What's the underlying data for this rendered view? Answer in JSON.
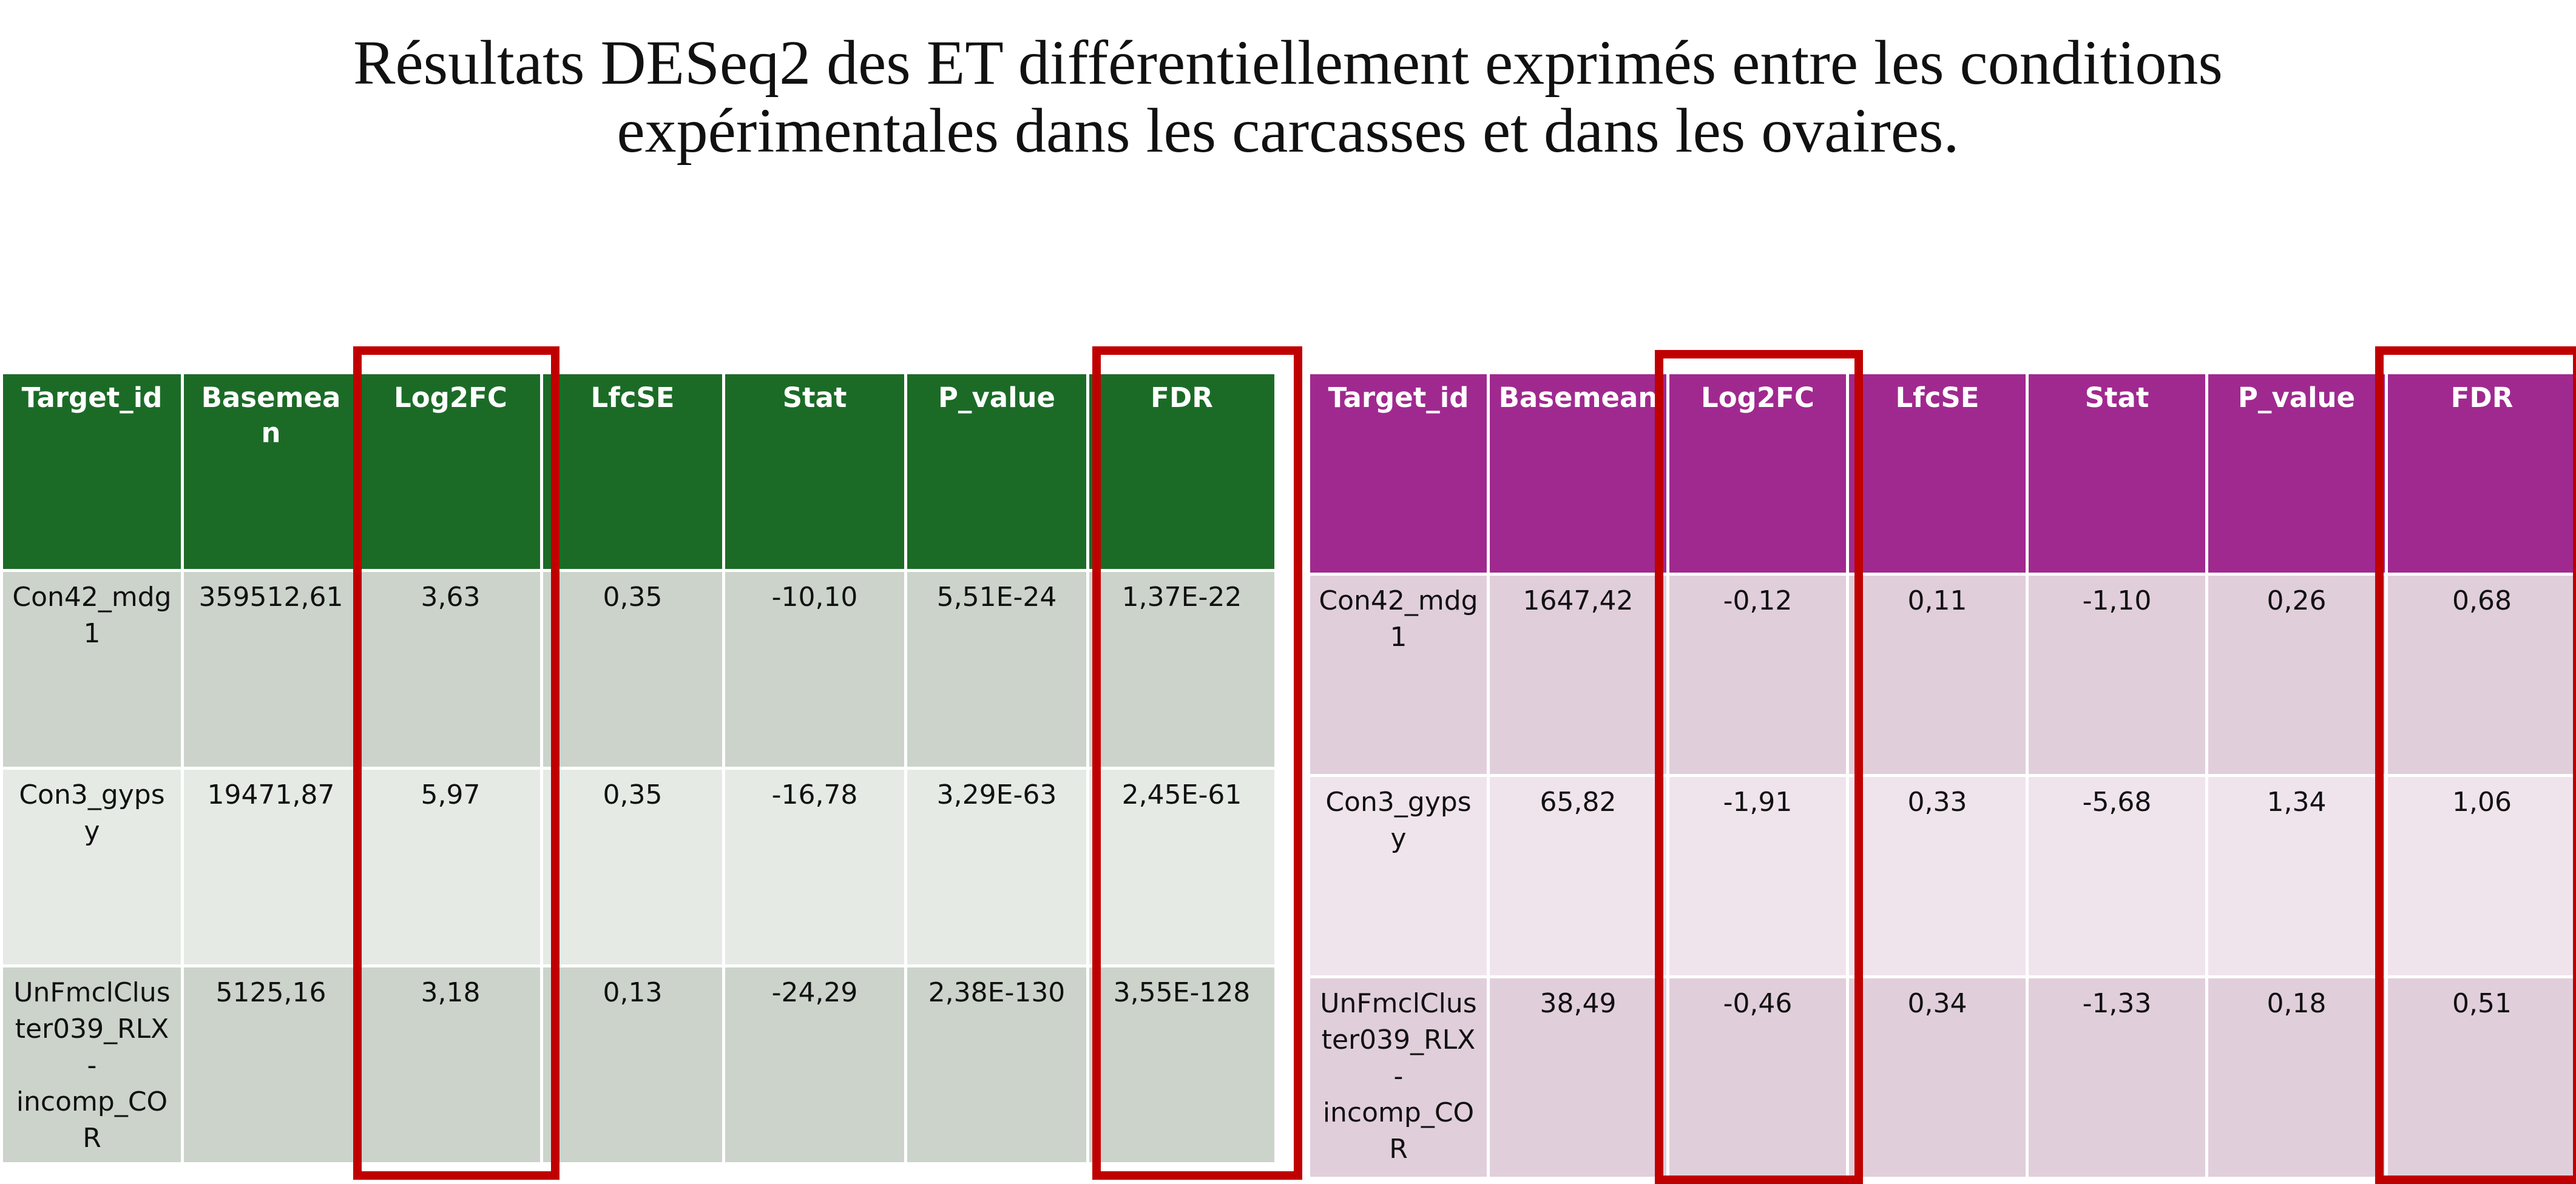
{
  "title": {
    "line1": "Résultats DESeq2 des ET différentiellement exprimés entre les conditions",
    "line2": "expérimentales dans les carcasses et dans les ovaires."
  },
  "columns": [
    "Target_id",
    "Basemean",
    "Log2FC",
    "LfcSE",
    "Stat",
    "P_value",
    "FDR"
  ],
  "carcasses_table": {
    "header_color": "#1b6b27",
    "row_colors": [
      "#cbd3cb",
      "#e5eae5"
    ],
    "rows": [
      [
        "Con42_mdg1",
        "359512,61",
        "3,63",
        "0,35",
        "-10,10",
        "5,51E-24",
        "1,37E-22"
      ],
      [
        "Con3_gypsy",
        "19471,87",
        "5,97",
        "0,35",
        "-16,78",
        "3,29E-63",
        "2,45E-61"
      ],
      [
        "UnFmclCluster039_RLX-incomp_COR",
        "5125,16",
        "3,18",
        "0,13",
        "-24,29",
        "2,38E-130",
        "3,55E-128"
      ]
    ]
  },
  "ovaires_table": {
    "header_color": "#a0298f",
    "row_colors": [
      "#e1cedb",
      "#f0e4ec"
    ],
    "rows": [
      [
        "Con42_mdg1",
        "1647,42",
        "-0,12",
        "0,11",
        "-1,10",
        "0,26",
        "0,68"
      ],
      [
        "Con3_gypsy",
        "65,82",
        "-1,91",
        "0,33",
        "-5,68",
        "1,34",
        "1,06"
      ],
      [
        "UnFmclCluster039_RLX-incomp_COR",
        "38,49",
        "-0,46",
        "0,34",
        "-1,33",
        "0,18",
        "0,51"
      ]
    ]
  },
  "highlight": {
    "color": "#c00000",
    "highlighted_columns": [
      "Log2FC",
      "FDR"
    ]
  }
}
